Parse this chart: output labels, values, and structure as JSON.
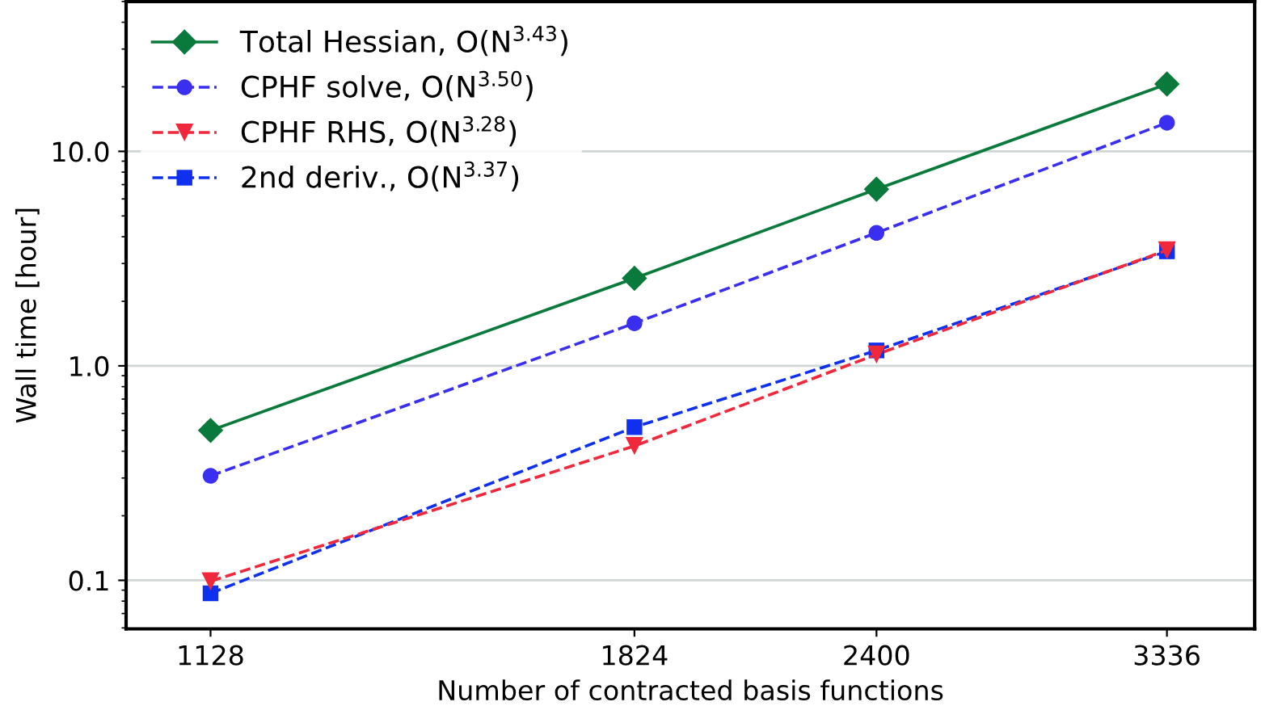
{
  "chart_data": {
    "type": "line",
    "xlabel": "Number of contracted basis functions",
    "ylabel": "Wall time [hour]",
    "x": [
      1128,
      1824,
      2400,
      3336
    ],
    "series": [
      {
        "name": "Total Hessian, O(N$^{3.43}$)",
        "color": "#0a7a3c",
        "marker": "diamond",
        "line_style": "solid",
        "values": [
          0.5,
          2.56,
          6.66,
          20.6
        ]
      },
      {
        "name": "CPHF solve, O(N$^{3.50}$)",
        "color": "#3a2ef0",
        "marker": "circle",
        "line_style": "dashed",
        "values": [
          0.307,
          1.58,
          4.17,
          13.6
        ]
      },
      {
        "name": "CPHF RHS, O(N$^{3.28}$)",
        "color": "#f0283c",
        "marker": "triangle",
        "line_style": "dashed",
        "values": [
          0.099,
          0.423,
          1.13,
          3.46
        ]
      },
      {
        "name": "2nd deriv., O(N$^{3.37}$)",
        "color": "#1030f0",
        "marker": "square",
        "line_style": "dashed",
        "values": [
          0.087,
          0.518,
          1.18,
          3.42
        ]
      }
    ],
    "log": "xy",
    "xlim": [
      1025,
      3685
    ],
    "ylim": [
      0.0594,
      50
    ],
    "xticks": [
      1128,
      1824,
      2400,
      3336
    ],
    "yticks": [
      0.1,
      {
        "value": 1,
        "label": "1.0"
      },
      {
        "value": 10,
        "label": "10.0"
      }
    ],
    "grid": "y",
    "legend": "top left"
  }
}
